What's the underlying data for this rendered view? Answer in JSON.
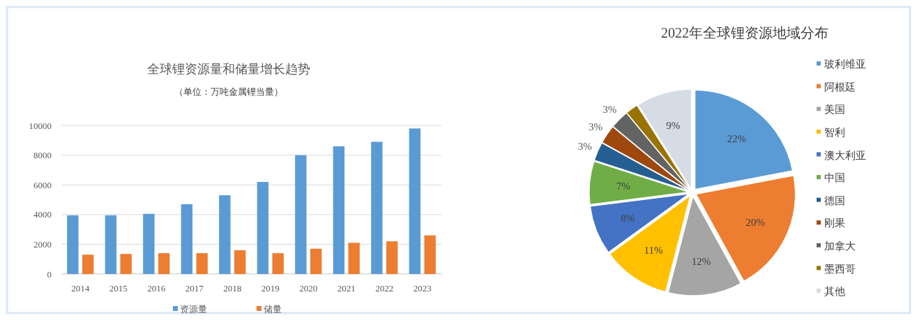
{
  "chart_data": [
    {
      "type": "bar",
      "title": "全球锂资源量和储量增长趋势",
      "subtitle": "（单位：万吨金属锂当量）",
      "categories": [
        "2014",
        "2015",
        "2016",
        "2017",
        "2018",
        "2019",
        "2020",
        "2021",
        "2022",
        "2023"
      ],
      "series": [
        {
          "name": "资源量",
          "color": "#5b9bd5",
          "values": [
            3950,
            3950,
            4050,
            4700,
            5300,
            6200,
            8000,
            8600,
            8900,
            9800
          ]
        },
        {
          "name": "储量",
          "color": "#ed7d31",
          "values": [
            1300,
            1350,
            1400,
            1400,
            1600,
            1400,
            1700,
            2100,
            2200,
            2600
          ]
        }
      ],
      "ylim": [
        0,
        10000
      ],
      "yticks": [
        0,
        2000,
        4000,
        6000,
        8000,
        10000
      ],
      "grid": "y",
      "legend": "bottom"
    },
    {
      "type": "pie",
      "title": "2022年全球锂资源地域分布",
      "categories": [
        "玻利维亚",
        "阿根廷",
        "美国",
        "智利",
        "澳大利亚",
        "中国",
        "德国",
        "刚果",
        "加拿大",
        "墨西哥",
        "其他"
      ],
      "values": [
        22,
        20,
        12,
        11,
        8,
        7,
        3,
        3,
        3,
        2,
        9
      ],
      "colors": [
        "#5b9bd5",
        "#ed7d31",
        "#a5a5a5",
        "#ffc000",
        "#4472c4",
        "#70ad47",
        "#255e91",
        "#9e480e",
        "#636363",
        "#997300",
        "#d6dce5"
      ],
      "value_labels": [
        "22%",
        "20%",
        "12%",
        "11%",
        "8%",
        "7%",
        "3%",
        "3%",
        "3%",
        null,
        "9%"
      ],
      "legend": "right"
    }
  ]
}
